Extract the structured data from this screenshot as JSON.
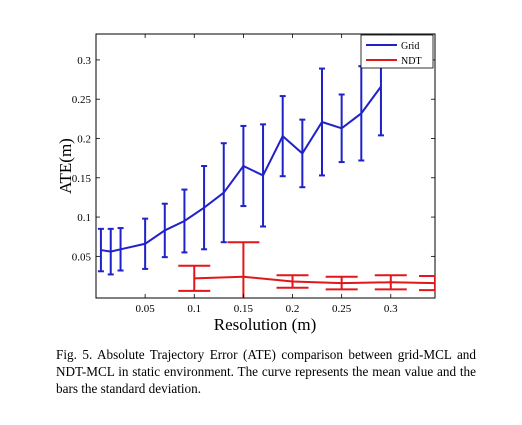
{
  "chart_data": {
    "type": "line",
    "xlabel": "Resolution (m)",
    "ylabel": "ATE(m)",
    "xlim": [
      0.0,
      0.345
    ],
    "ylim": [
      -0.003,
      0.333
    ],
    "xticks": [
      "0.05",
      "0.1",
      "0.15",
      "0.2",
      "0.25",
      "0.3"
    ],
    "yticks": [
      "0.05",
      "0.1",
      "0.15",
      "0.2",
      "0.25",
      "0.3"
    ],
    "legend": {
      "placement": "top-right",
      "entries": [
        "Grid",
        "NDT"
      ]
    },
    "grid": false,
    "series": [
      {
        "name": "Grid",
        "color": "#1f22c8",
        "x": [
          0.005,
          0.015,
          0.025,
          0.05,
          0.07,
          0.09,
          0.11,
          0.13,
          0.15,
          0.17,
          0.19,
          0.21,
          0.23,
          0.25,
          0.27,
          0.29
        ],
        "y": [
          0.058,
          0.056,
          0.059,
          0.066,
          0.083,
          0.095,
          0.112,
          0.131,
          0.165,
          0.153,
          0.203,
          0.181,
          0.221,
          0.213,
          0.232,
          0.266
        ],
        "err": [
          0.027,
          0.029,
          0.027,
          0.032,
          0.034,
          0.04,
          0.053,
          0.063,
          0.051,
          0.065,
          0.051,
          0.043,
          0.068,
          0.043,
          0.06,
          0.062
        ]
      },
      {
        "name": "NDT",
        "color": "#e0171b",
        "x": [
          0.1,
          0.15,
          0.2,
          0.25,
          0.3,
          0.345
        ],
        "y": [
          0.022,
          0.024,
          0.018,
          0.016,
          0.017,
          0.016
        ],
        "err": [
          0.016,
          0.044,
          0.008,
          0.008,
          0.009,
          0.009
        ]
      }
    ]
  },
  "caption": "Fig. 5.   Absolute Trajectory Error (ATE) comparison between grid-MCL and NDT-MCL in static environment. The curve represents the mean value and the bars the standard deviation."
}
